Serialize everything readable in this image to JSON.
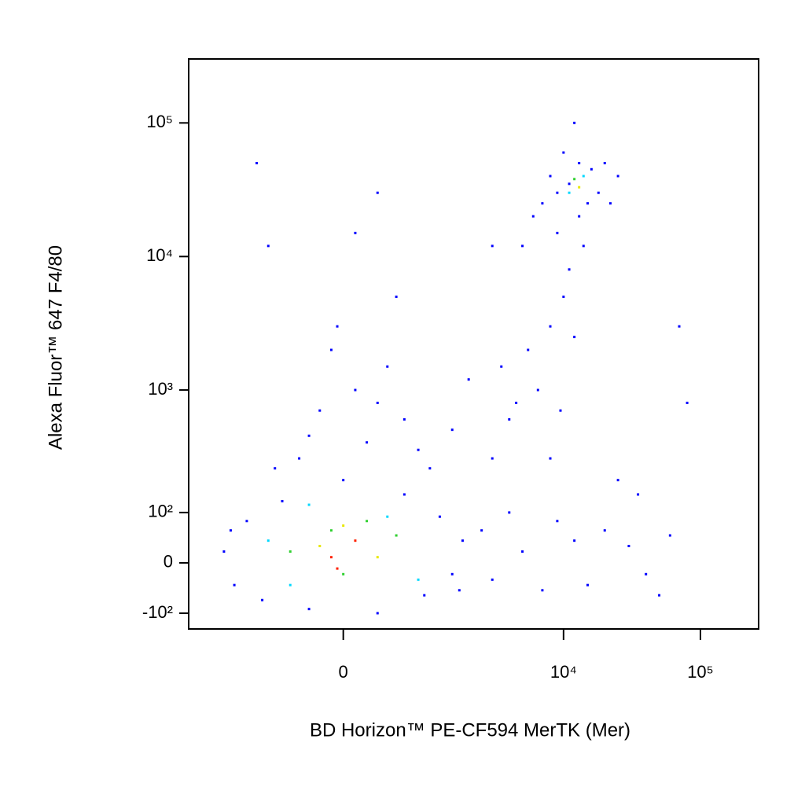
{
  "chart_data": {
    "type": "scatter",
    "x_label": "BD Horizon™ PE-CF594 MerTK (Mer)",
    "y_label": "Alexa Fluor™ 647 F4/80",
    "x_scale": "biexponential",
    "y_scale": "biexponential",
    "xlim": [
      -3300,
      266000
    ],
    "ylim": [
      -143,
      301000
    ],
    "xticks": [
      0,
      {
        "value": 10000,
        "label": "10⁴"
      },
      {
        "value": 100000,
        "label": "10⁵"
      }
    ],
    "yticks": [
      {
        "value": -100,
        "label": "-10²"
      },
      0,
      {
        "value": 100,
        "label": "10²"
      },
      {
        "value": 1000,
        "label": "10³"
      },
      {
        "value": 10000,
        "label": "10⁴"
      },
      {
        "value": 100000,
        "label": "10⁵"
      }
    ],
    "series": [
      {
        "color": "#0000ff",
        "x": [
          -1800,
          -1500,
          -1200,
          -900,
          -600,
          -300,
          0,
          300,
          600,
          900,
          1200,
          1500,
          1800,
          -1600,
          1700,
          -400,
          200,
          600,
          -200,
          100,
          400,
          -100,
          300,
          800,
          -700,
          -50,
          500,
          -800,
          100,
          -1000,
          300,
          -300,
          1000,
          2500,
          3000,
          4000,
          5000,
          7000,
          9000,
          12000,
          15000,
          20000,
          30000,
          40000,
          60000,
          3500,
          4500,
          5500,
          6500,
          8000,
          10000,
          11000,
          14000,
          9000,
          6000,
          5000,
          7000,
          13000,
          16000,
          18000,
          22000,
          25000,
          10000,
          12000,
          8000,
          20000,
          11000,
          15000,
          9000,
          13000,
          3000,
          4000,
          8000,
          3000,
          25000,
          35000,
          50000,
          80000,
          70000,
          2000,
          1500,
          9500,
          12000
        ],
        "y": [
          20,
          -40,
          80,
          -70,
          130,
          -90,
          200,
          -100,
          150,
          -60,
          90,
          -20,
          40,
          60,
          -50,
          300,
          400,
          600,
          700,
          1000,
          1500,
          2000,
          800,
          350,
          250,
          3000,
          5000,
          12000,
          15000,
          50000,
          30000,
          450,
          250,
          60,
          -30,
          100,
          20,
          -50,
          80,
          40,
          -40,
          60,
          30,
          -20,
          50,
          1500,
          800,
          2000,
          1000,
          3000,
          5000,
          8000,
          12000,
          15000,
          20000,
          12000,
          25000,
          20000,
          45000,
          30000,
          25000,
          40000,
          60000,
          100000,
          40000,
          50000,
          35000,
          25000,
          30000,
          50000,
          12000,
          600,
          300,
          300,
          200,
          150,
          -60,
          800,
          3000,
          1200,
          500,
          700,
          2500
        ]
      },
      {
        "color": "#00d8ff",
        "x": [
          -800,
          800,
          -300,
          400,
          11000,
          14000,
          -500
        ],
        "y": [
          40,
          -30,
          120,
          90,
          30000,
          40000,
          -40
        ]
      },
      {
        "color": "#30d030",
        "x": [
          -500,
          500,
          0,
          200,
          12000,
          -100
        ],
        "y": [
          20,
          50,
          -20,
          80,
          38000,
          60
        ]
      },
      {
        "color": "#e8e800",
        "x": [
          -200,
          300,
          13000,
          0
        ],
        "y": [
          30,
          10,
          33000,
          70
        ]
      },
      {
        "color": "#ff2000",
        "x": [
          -100,
          100,
          -50
        ],
        "y": [
          10,
          40,
          -10
        ]
      }
    ]
  }
}
